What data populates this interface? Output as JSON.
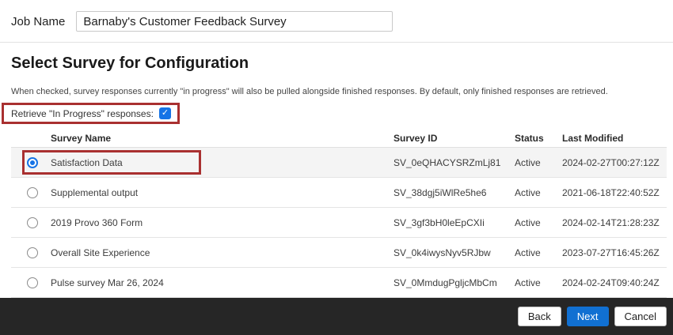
{
  "job": {
    "label": "Job Name",
    "value": "Barnaby's Customer Feedback Survey"
  },
  "section": {
    "title": "Select Survey for Configuration",
    "description": "When checked, survey responses currently \"in progress\" will also be pulled alongside finished responses. By default, only finished responses are retrieved.",
    "checkbox_label": "Retrieve \"In Progress\" responses:",
    "checkbox_checked": true
  },
  "icons": {
    "checkmark": "✓"
  },
  "table": {
    "headers": {
      "name": "Survey Name",
      "id": "Survey ID",
      "status": "Status",
      "modified": "Last Modified"
    },
    "rows": [
      {
        "name": "Satisfaction Data",
        "id": "SV_0eQHACYSRZmLj81",
        "status": "Active",
        "modified": "2024-02-27T00:27:12Z",
        "selected": true
      },
      {
        "name": "Supplemental output",
        "id": "SV_38dgj5iWlRe5he6",
        "status": "Active",
        "modified": "2021-06-18T22:40:52Z",
        "selected": false
      },
      {
        "name": "2019 Provo 360 Form",
        "id": "SV_3gf3bH0leEpCXIi",
        "status": "Active",
        "modified": "2024-02-14T21:28:23Z",
        "selected": false
      },
      {
        "name": "Overall Site Experience",
        "id": "SV_0k4iwysNyv5RJbw",
        "status": "Active",
        "modified": "2023-07-27T16:45:26Z",
        "selected": false
      },
      {
        "name": "Pulse survey Mar 26, 2024",
        "id": "SV_0MmdugPgljcMbCm",
        "status": "Active",
        "modified": "2024-02-24T09:40:24Z",
        "selected": false
      }
    ]
  },
  "footer": {
    "back": "Back",
    "next": "Next",
    "cancel": "Cancel"
  },
  "colors": {
    "accent_blue": "#1673e6",
    "primary_button_blue": "#1170d2",
    "annotation_red": "#a93030",
    "footer_bg": "#262626",
    "selected_row_bg": "#f4f4f4"
  }
}
